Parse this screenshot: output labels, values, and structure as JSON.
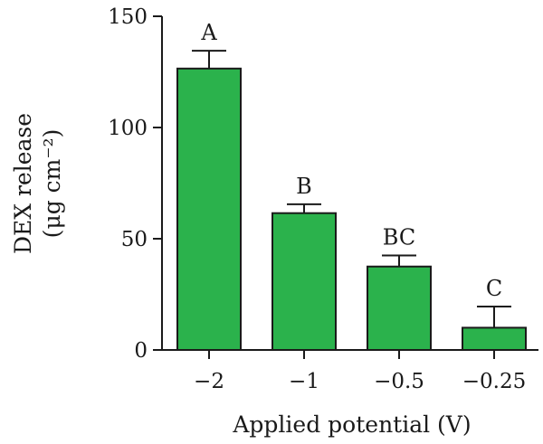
{
  "chart_data": {
    "type": "bar",
    "categories": [
      "−2",
      "−1",
      "−0.5",
      "−0.25"
    ],
    "values": [
      126.5,
      61.5,
      37.5,
      10
    ],
    "errors": [
      8,
      4,
      5,
      9.5
    ],
    "significance_labels": [
      "A",
      "B",
      "BC",
      "C"
    ],
    "ylabel_line1": "DEX release",
    "ylabel_line2": "(μg cm⁻²)",
    "xlabel": "Applied potential (V)",
    "ylim": [
      0,
      150
    ],
    "yticks": [
      0,
      50,
      100,
      150
    ],
    "ytick_labels": [
      "0",
      "50",
      "100",
      "150"
    ],
    "grid": false,
    "bar_color": "#2bb24c",
    "edge_color": "#1a1a1a"
  }
}
